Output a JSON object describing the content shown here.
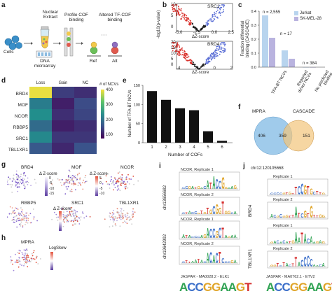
{
  "panel_labels": [
    "a",
    "b",
    "c",
    "d",
    "e",
    "f",
    "g",
    "h",
    "i",
    "j"
  ],
  "panel_a": {
    "cells": "Cells",
    "nuclear_extract": "Nuclear\nExtract",
    "profile": "Profile COF\nbinding",
    "altered": "Altered TF-COF\nbinding",
    "dna": "DNA\nmicroarray",
    "ref": "Ref",
    "alt": "Alt"
  },
  "panel_b": {
    "titles": [
      "SRC1",
      "BRD4"
    ],
    "ylabel": "-log10(p-value)",
    "xlabel": "ΔZ-score",
    "top_xticks": [
      "-5.0",
      "-2.5",
      "0.0",
      "2.5"
    ],
    "bottom_xticks": [
      "-4",
      "-2",
      "0",
      "2"
    ],
    "yticks_top": [
      "0",
      "5",
      "10"
    ],
    "yticks_bottom": [
      "0",
      "5",
      "10",
      "15",
      "20"
    ]
  },
  "chart_data": [
    {
      "type": "bar",
      "panel": "c",
      "ylabel": "Fraction differential\nbinding (CASCADE)",
      "categories": [
        "TFA-BT NCVs",
        "Reported\ndriver NCVs",
        "No predicted\nbinding"
      ],
      "series": [
        {
          "name": "Jurkat",
          "color": "#b8d4ee",
          "values": [
            0.37,
            0.12,
            0.0
          ]
        },
        {
          "name": "SK-MEL-28",
          "color": "#b9b3df",
          "values": [
            0.21,
            0.06,
            0.0
          ]
        }
      ],
      "annotations": [
        "n = 2,555",
        "n = 17",
        "n = 384"
      ],
      "ylim": [
        0,
        0.4
      ],
      "yticks": [
        "0.0",
        "0.1",
        "0.2",
        "0.3",
        "0.4"
      ]
    },
    {
      "type": "heatmap",
      "panel": "d",
      "rows": [
        "BRD4",
        "MOF",
        "NCOR",
        "RBBP5",
        "SRC1",
        "TBL1XR1"
      ],
      "columns": [
        "Loss",
        "Gain",
        "NC"
      ],
      "values": [
        [
          420,
          80,
          60
        ],
        [
          180,
          40,
          100
        ],
        [
          210,
          60,
          90
        ],
        [
          150,
          40,
          60
        ],
        [
          200,
          70,
          70
        ],
        [
          120,
          50,
          110
        ]
      ],
      "colorbar_label": "# of NCVs",
      "colorbar_ticks": [
        "400",
        "300",
        "200",
        "100"
      ]
    },
    {
      "type": "bar",
      "panel": "e",
      "xlabel": "Number of COFs",
      "ylabel": "Number of TFA-BT NCVs",
      "categories": [
        "1",
        "2",
        "3",
        "4",
        "5",
        "6"
      ],
      "values": [
        135,
        112,
        90,
        85,
        30,
        5
      ],
      "ylim": [
        0,
        150
      ],
      "yticks": [
        "0",
        "50",
        "100",
        "150"
      ]
    }
  ],
  "panel_f": {
    "left_label": "MPRA",
    "right_label": "CASCADE",
    "left_only": "406",
    "overlap": "359",
    "right_only": "151"
  },
  "panel_g": {
    "maps": [
      "BRD4",
      "MOF",
      "NCOR",
      "RBBP5",
      "SRC1",
      "TBL1XR1"
    ],
    "legend_label": "Δ Z-score",
    "legend_ticks_a": [
      "0",
      "-5",
      "-10",
      "-15"
    ],
    "legend_ticks_b": [
      "5",
      "0",
      "-5",
      "-10"
    ]
  },
  "panel_h": {
    "title": "MPRA",
    "legend_label": "LogSkew"
  },
  "panel_i": {
    "chr_top": "chr13656682",
    "chr_bottom": "chr19642992",
    "logos": [
      "NCOR, Replicate 1",
      "NCOR, Replicate 2",
      "NCOR, Replicate 1",
      "NCOR, Replicate 2"
    ],
    "jaspar": "JASPAR - MA0028.2 - ELK1",
    "jaspar_seq": "ACCGGAAGT"
  },
  "panel_j": {
    "chr": "chr12:120105668",
    "side_top": "BRD4",
    "side_bottom": "TBL1XR1",
    "logos": [
      "Replicate 1",
      "Replicate 2",
      "Replicate 1",
      "Replicate 2"
    ],
    "jaspar": "JASPAR - MA0762.1 - ETV2",
    "jaspar_seq": "ACCGGAAGT"
  }
}
